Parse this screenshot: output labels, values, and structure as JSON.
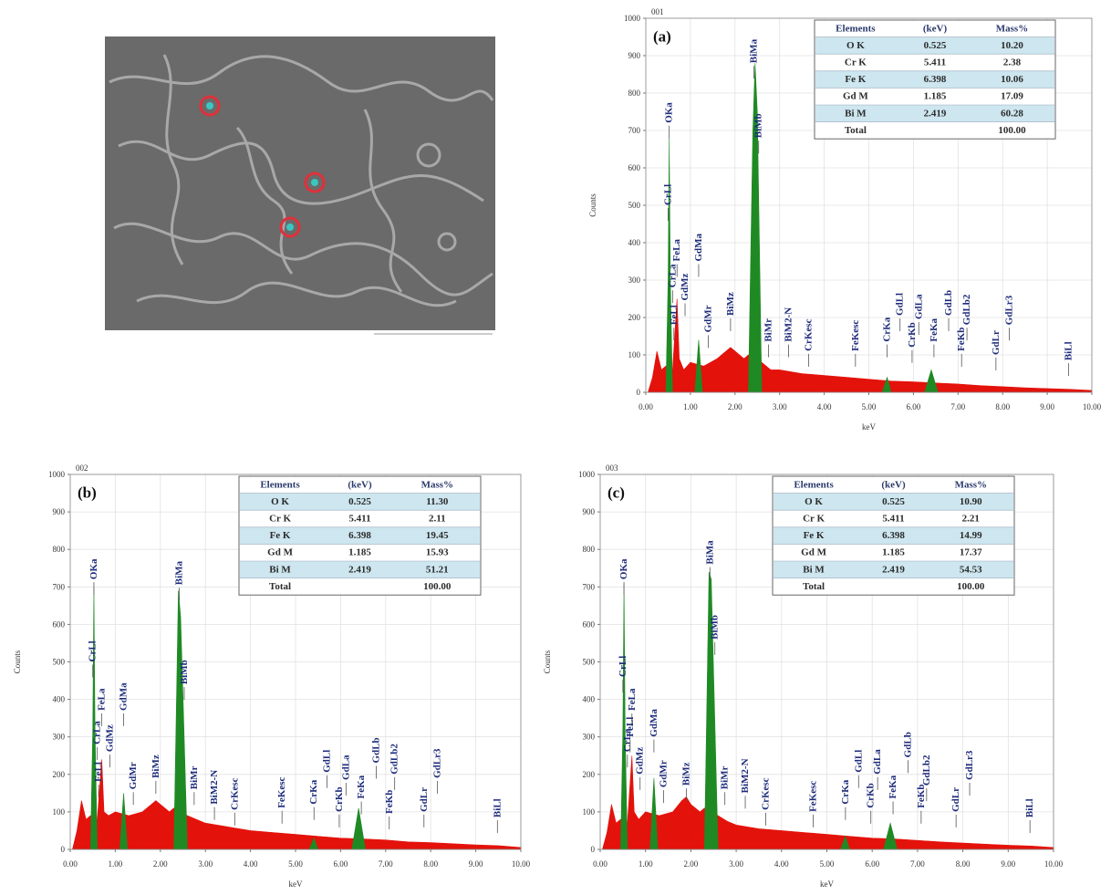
{
  "chart_data": [
    {
      "type": "area",
      "id_label": "001",
      "panel_label": "(a)",
      "xlabel": "keV",
      "ylabel": "Counts",
      "xlim": [
        0,
        10
      ],
      "xticks": [
        {
          "value": 0,
          "label": "0.00"
        },
        {
          "value": 1,
          "label": "1.00"
        },
        {
          "value": 2,
          "label": "2.00"
        },
        {
          "value": 3,
          "label": "3.00"
        },
        {
          "value": 4,
          "label": "4.00"
        },
        {
          "value": 5,
          "label": "5.00"
        },
        {
          "value": 6,
          "label": "6.00"
        },
        {
          "value": 7,
          "label": "7.00"
        },
        {
          "value": 8,
          "label": "8.00"
        },
        {
          "value": 9,
          "label": "9.00"
        },
        {
          "value": 10,
          "label": "10.00"
        }
      ],
      "ylim": [
        0,
        1000
      ],
      "yticks": [
        0,
        100,
        200,
        300,
        400,
        500,
        600,
        700,
        800,
        900,
        1000
      ],
      "grid": true,
      "series": [
        {
          "color": "#e3120b",
          "x": [
            0.05,
            0.15,
            0.25,
            0.35,
            0.45,
            0.6,
            0.7,
            0.75,
            0.85,
            1.0,
            1.3,
            1.6,
            1.8,
            1.9,
            2.0,
            2.1,
            2.2,
            2.3,
            2.6,
            2.8,
            3.0,
            3.5,
            4.0,
            4.5,
            5.0,
            5.5,
            6.0,
            6.5,
            7.0,
            7.5,
            8.0,
            8.5,
            9.0,
            9.5,
            10.0
          ],
          "values": [
            0,
            40,
            110,
            60,
            70,
            60,
            250,
            90,
            60,
            80,
            70,
            90,
            110,
            120,
            110,
            100,
            90,
            100,
            80,
            60,
            60,
            50,
            45,
            40,
            35,
            30,
            28,
            25,
            22,
            18,
            15,
            12,
            10,
            8,
            5
          ]
        },
        {
          "color": "#1f8a24",
          "x": [
            0.45,
            0.5,
            0.525,
            0.55,
            0.6,
            0.61,
            1.1,
            1.185,
            1.27,
            1.28,
            2.3,
            2.4,
            2.45,
            2.5,
            2.6,
            2.61,
            5.3,
            5.41,
            5.5,
            5.51,
            6.25,
            6.4,
            6.55
          ],
          "values": [
            0,
            300,
            680,
            300,
            0,
            null,
            0,
            140,
            0,
            null,
            0,
            700,
            880,
            750,
            0,
            null,
            0,
            40,
            0,
            null,
            0,
            60,
            0
          ]
        }
      ],
      "annotations": [
        {
          "text": "OKa",
          "x": 0.525,
          "y": 720
        },
        {
          "text": "CrLl",
          "x": 0.5,
          "y": 500
        },
        {
          "text": "FeLa",
          "x": 0.7,
          "y": 350
        },
        {
          "text": "CrLa",
          "x": 0.6,
          "y": 280
        },
        {
          "text": "FeLl",
          "x": 0.63,
          "y": 180
        },
        {
          "text": "GdMz",
          "x": 0.88,
          "y": 245
        },
        {
          "text": "GdMa",
          "x": 1.185,
          "y": 350
        },
        {
          "text": "GdMr",
          "x": 1.4,
          "y": 160
        },
        {
          "text": "BiMz",
          "x": 1.9,
          "y": 205
        },
        {
          "text": "BiMa",
          "x": 2.42,
          "y": 880
        },
        {
          "text": "BiMb",
          "x": 2.53,
          "y": 680
        },
        {
          "text": "BiMr",
          "x": 2.75,
          "y": 135
        },
        {
          "text": "BiM2-N",
          "x": 3.2,
          "y": 135
        },
        {
          "text": "CrKesc",
          "x": 3.65,
          "y": 110
        },
        {
          "text": "FeKesc",
          "x": 4.7,
          "y": 110
        },
        {
          "text": "CrKa",
          "x": 5.41,
          "y": 135
        },
        {
          "text": "GdLl",
          "x": 5.7,
          "y": 205
        },
        {
          "text": "CrKb",
          "x": 5.97,
          "y": 120
        },
        {
          "text": "GdLa",
          "x": 6.12,
          "y": 195
        },
        {
          "text": "FeKa",
          "x": 6.46,
          "y": 135
        },
        {
          "text": "GdLb",
          "x": 6.79,
          "y": 205
        },
        {
          "text": "FeKb",
          "x": 7.08,
          "y": 110
        },
        {
          "text": "GdLb2",
          "x": 7.2,
          "y": 180
        },
        {
          "text": "GdLr",
          "x": 7.85,
          "y": 100
        },
        {
          "text": "GdLr3",
          "x": 8.15,
          "y": 180
        },
        {
          "text": "BiLl",
          "x": 9.48,
          "y": 85
        }
      ],
      "table": {
        "header": [
          "Elements",
          "(keV)",
          "Mass%"
        ],
        "rows": [
          [
            "O K",
            "0.525",
            "10.20"
          ],
          [
            "Cr K",
            "5.411",
            "2.38"
          ],
          [
            "Fe K",
            "6.398",
            "10.06"
          ],
          [
            "Gd M",
            "1.185",
            "17.09"
          ],
          [
            "Bi M",
            "2.419",
            "60.28"
          ]
        ],
        "total": {
          "label": "Total",
          "mass": "100.00"
        }
      }
    },
    {
      "type": "area",
      "id_label": "002",
      "panel_label": "(b)",
      "xlabel": "keV",
      "ylabel": "Counts",
      "xlim": [
        0,
        10
      ],
      "xticks": [
        {
          "value": 0,
          "label": "0.00"
        },
        {
          "value": 1,
          "label": "1.00"
        },
        {
          "value": 2,
          "label": "2.00"
        },
        {
          "value": 3,
          "label": "3.00"
        },
        {
          "value": 4,
          "label": "4.00"
        },
        {
          "value": 5,
          "label": "5.00"
        },
        {
          "value": 6,
          "label": "6.00"
        },
        {
          "value": 7,
          "label": "7.00"
        },
        {
          "value": 8,
          "label": "8.00"
        },
        {
          "value": 9,
          "label": "9.00"
        },
        {
          "value": 10,
          "label": "10.00"
        }
      ],
      "ylim": [
        0,
        1000
      ],
      "yticks": [
        0,
        100,
        200,
        300,
        400,
        500,
        600,
        700,
        800,
        900,
        1000
      ],
      "grid": true,
      "series": [
        {
          "color": "#e3120b",
          "x": [
            0.05,
            0.15,
            0.25,
            0.35,
            0.45,
            0.6,
            0.7,
            0.75,
            0.85,
            1.0,
            1.3,
            1.6,
            1.8,
            1.9,
            2.0,
            2.1,
            2.2,
            2.3,
            2.6,
            2.8,
            3.0,
            3.5,
            4.0,
            4.5,
            5.0,
            5.5,
            6.0,
            6.5,
            7.0,
            7.5,
            8.0,
            8.5,
            9.0,
            9.5,
            10.0
          ],
          "values": [
            0,
            50,
            130,
            80,
            90,
            80,
            240,
            100,
            90,
            100,
            90,
            100,
            120,
            130,
            120,
            110,
            100,
            110,
            90,
            80,
            70,
            60,
            50,
            45,
            40,
            35,
            30,
            28,
            25,
            20,
            18,
            15,
            12,
            10,
            5
          ]
        },
        {
          "color": "#1f8a24",
          "x": [
            0.45,
            0.5,
            0.525,
            0.55,
            0.6,
            0.61,
            1.1,
            1.185,
            1.27,
            1.28,
            2.3,
            2.4,
            2.45,
            2.5,
            2.6,
            2.61,
            5.3,
            5.41,
            5.5,
            5.51,
            6.25,
            6.4,
            6.55
          ],
          "values": [
            0,
            320,
            700,
            320,
            0,
            null,
            0,
            150,
            0,
            null,
            0,
            690,
            620,
            420,
            0,
            null,
            0,
            30,
            0,
            null,
            0,
            110,
            0
          ]
        }
      ],
      "annotations": [
        {
          "text": "OKa",
          "x": 0.525,
          "y": 720
        },
        {
          "text": "CrLl",
          "x": 0.5,
          "y": 500
        },
        {
          "text": "FeLa",
          "x": 0.7,
          "y": 370
        },
        {
          "text": "CrLa",
          "x": 0.6,
          "y": 280
        },
        {
          "text": "FeLl",
          "x": 0.63,
          "y": 180
        },
        {
          "text": "GdMz",
          "x": 0.88,
          "y": 260
        },
        {
          "text": "GdMa",
          "x": 1.185,
          "y": 370
        },
        {
          "text": "GdMr",
          "x": 1.4,
          "y": 160
        },
        {
          "text": "BiMz",
          "x": 1.9,
          "y": 190
        },
        {
          "text": "BiMa",
          "x": 2.42,
          "y": 705
        },
        {
          "text": "BiMb",
          "x": 2.53,
          "y": 440
        },
        {
          "text": "BiMr",
          "x": 2.75,
          "y": 160
        },
        {
          "text": "BiM2-N",
          "x": 3.2,
          "y": 120
        },
        {
          "text": "CrKesc",
          "x": 3.65,
          "y": 105
        },
        {
          "text": "FeKesc",
          "x": 4.7,
          "y": 110
        },
        {
          "text": "CrKa",
          "x": 5.41,
          "y": 120
        },
        {
          "text": "GdLl",
          "x": 5.7,
          "y": 205
        },
        {
          "text": "CrKb",
          "x": 5.97,
          "y": 100
        },
        {
          "text": "GdLa",
          "x": 6.12,
          "y": 185
        },
        {
          "text": "FeKa",
          "x": 6.46,
          "y": 135
        },
        {
          "text": "GdLb",
          "x": 6.79,
          "y": 230
        },
        {
          "text": "FeKb",
          "x": 7.08,
          "y": 95
        },
        {
          "text": "GdLb2",
          "x": 7.2,
          "y": 200
        },
        {
          "text": "GdLr",
          "x": 7.85,
          "y": 100
        },
        {
          "text": "GdLr3",
          "x": 8.15,
          "y": 190
        },
        {
          "text": "BiLl",
          "x": 9.48,
          "y": 85
        }
      ],
      "table": {
        "header": [
          "Elements",
          "(keV)",
          "Mass%"
        ],
        "rows": [
          [
            "O K",
            "0.525",
            "11.30"
          ],
          [
            "Cr K",
            "5.411",
            "2.11"
          ],
          [
            "Fe K",
            "6.398",
            "19.45"
          ],
          [
            "Gd M",
            "1.185",
            "15.93"
          ],
          [
            "Bi M",
            "2.419",
            "51.21"
          ]
        ],
        "total": {
          "label": "Total",
          "mass": "100.00"
        }
      }
    },
    {
      "type": "area",
      "id_label": "003",
      "panel_label": "(c)",
      "xlabel": "keV",
      "ylabel": "Counts",
      "xlim": [
        0,
        10
      ],
      "xticks": [
        {
          "value": 0,
          "label": "0.00"
        },
        {
          "value": 1,
          "label": "1.00"
        },
        {
          "value": 2,
          "label": "2.00"
        },
        {
          "value": 3,
          "label": "3.00"
        },
        {
          "value": 4,
          "label": "4.00"
        },
        {
          "value": 5,
          "label": "5.00"
        },
        {
          "value": 6,
          "label": "6.00"
        },
        {
          "value": 7,
          "label": "7.00"
        },
        {
          "value": 8,
          "label": "8.00"
        },
        {
          "value": 9,
          "label": "9.00"
        },
        {
          "value": 10,
          "label": "10.00"
        }
      ],
      "ylim": [
        0,
        1000
      ],
      "yticks": [
        0,
        100,
        200,
        300,
        400,
        500,
        600,
        700,
        800,
        900,
        1000
      ],
      "grid": true,
      "series": [
        {
          "color": "#e3120b",
          "x": [
            0.05,
            0.15,
            0.25,
            0.35,
            0.45,
            0.6,
            0.7,
            0.75,
            0.85,
            1.0,
            1.3,
            1.6,
            1.8,
            1.9,
            2.0,
            2.1,
            2.2,
            2.3,
            2.6,
            2.8,
            3.0,
            3.5,
            4.0,
            4.5,
            5.0,
            5.5,
            6.0,
            6.5,
            7.0,
            7.5,
            8.0,
            8.5,
            9.0,
            9.5,
            10.0
          ],
          "values": [
            0,
            45,
            120,
            70,
            80,
            70,
            250,
            100,
            80,
            100,
            90,
            100,
            130,
            140,
            120,
            110,
            100,
            110,
            90,
            75,
            65,
            55,
            50,
            45,
            40,
            35,
            30,
            28,
            24,
            20,
            17,
            14,
            11,
            9,
            5
          ]
        },
        {
          "color": "#1f8a24",
          "x": [
            0.45,
            0.5,
            0.525,
            0.55,
            0.6,
            0.61,
            1.1,
            1.185,
            1.27,
            1.28,
            2.3,
            2.4,
            2.45,
            2.5,
            2.6,
            2.61,
            5.3,
            5.41,
            5.5,
            5.51,
            6.25,
            6.4,
            6.55
          ],
          "values": [
            0,
            320,
            710,
            320,
            0,
            null,
            0,
            190,
            0,
            null,
            0,
            740,
            720,
            480,
            0,
            null,
            0,
            35,
            0,
            null,
            0,
            70,
            0
          ]
        }
      ],
      "annotations": [
        {
          "text": "OKa",
          "x": 0.525,
          "y": 720
        },
        {
          "text": "CrLl",
          "x": 0.5,
          "y": 460
        },
        {
          "text": "FeLa",
          "x": 0.7,
          "y": 370
        },
        {
          "text": "CrLa",
          "x": 0.6,
          "y": 260
        },
        {
          "text": "FeLl",
          "x": 0.66,
          "y": 300
        },
        {
          "text": "GdMz",
          "x": 0.88,
          "y": 200
        },
        {
          "text": "GdMa",
          "x": 1.185,
          "y": 300
        },
        {
          "text": "GdMr",
          "x": 1.4,
          "y": 165
        },
        {
          "text": "BiMz",
          "x": 1.9,
          "y": 170
        },
        {
          "text": "BiMa",
          "x": 2.42,
          "y": 760
        },
        {
          "text": "BiMb",
          "x": 2.53,
          "y": 560
        },
        {
          "text": "BiMr",
          "x": 2.75,
          "y": 160
        },
        {
          "text": "BiM2-N",
          "x": 3.2,
          "y": 150
        },
        {
          "text": "CrKesc",
          "x": 3.65,
          "y": 105
        },
        {
          "text": "FeKesc",
          "x": 4.7,
          "y": 100
        },
        {
          "text": "CrKa",
          "x": 5.41,
          "y": 120
        },
        {
          "text": "GdLl",
          "x": 5.7,
          "y": 205
        },
        {
          "text": "CrKb",
          "x": 5.97,
          "y": 110
        },
        {
          "text": "GdLa",
          "x": 6.12,
          "y": 200
        },
        {
          "text": "FeKa",
          "x": 6.46,
          "y": 135
        },
        {
          "text": "GdLb",
          "x": 6.79,
          "y": 245
        },
        {
          "text": "FeKb",
          "x": 7.08,
          "y": 110
        },
        {
          "text": "GdLb2",
          "x": 7.2,
          "y": 170
        },
        {
          "text": "GdLr",
          "x": 7.85,
          "y": 100
        },
        {
          "text": "GdLr3",
          "x": 8.15,
          "y": 185
        },
        {
          "text": "BiLl",
          "x": 9.48,
          "y": 85
        }
      ],
      "table": {
        "header": [
          "Elements",
          "(keV)",
          "Mass%"
        ],
        "rows": [
          [
            "O K",
            "0.525",
            "10.90"
          ],
          [
            "Cr K",
            "5.411",
            "2.21"
          ],
          [
            "Fe K",
            "6.398",
            "14.99"
          ],
          [
            "Gd M",
            "1.185",
            "17.37"
          ],
          [
            "Bi M",
            "2.419",
            "54.53"
          ]
        ],
        "total": {
          "label": "Total",
          "mass": "100.00"
        }
      }
    }
  ]
}
